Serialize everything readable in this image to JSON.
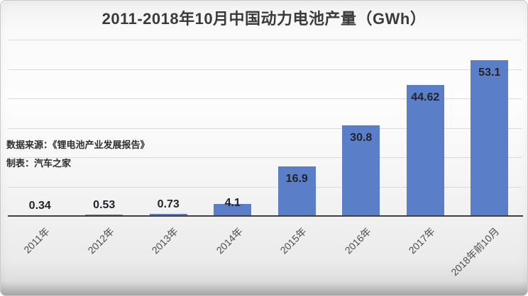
{
  "chart_data": {
    "type": "bar",
    "title": "2011-2018年10月中国动力电池产量（GWh）",
    "categories": [
      "2011年",
      "2012年",
      "2013年",
      "2014年",
      "2015年",
      "2016年",
      "2017年",
      "2018年前10月"
    ],
    "values": [
      0.34,
      0.53,
      0.73,
      4.1,
      16.9,
      30.8,
      44.62,
      53.1
    ],
    "xlabel": "",
    "ylabel": "",
    "ylim": [
      0,
      60
    ],
    "gridline_step": 10,
    "grid": true,
    "legend_position": "none",
    "bar_color": "#5b7ec8",
    "value_label_color": "#20242c",
    "gridline_color": "#d9d9d9",
    "axis_line_color": "#3e3e3e"
  },
  "source": {
    "line1": "数据来源：《锂电池产业发展报告》",
    "line2": "制表：汽车之家"
  }
}
